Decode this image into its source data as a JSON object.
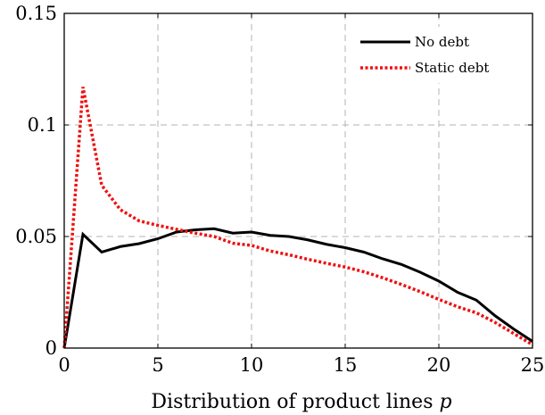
{
  "chart_data": {
    "type": "line",
    "title": "",
    "xlabel": "Distribution of product lines",
    "xlabel_var": "p",
    "ylabel": "",
    "xlim": [
      0,
      25
    ],
    "ylim": [
      0,
      0.15
    ],
    "x_ticks": [
      0,
      5,
      10,
      15,
      20,
      25
    ],
    "y_ticks": [
      0,
      0.05,
      0.1,
      0.15
    ],
    "x_tick_labels": [
      "0",
      "5",
      "10",
      "15",
      "20",
      "25"
    ],
    "y_tick_labels": [
      "0",
      "0.05",
      "0.1",
      "0.15"
    ],
    "grid": true,
    "legend_position": "top-right",
    "x": [
      0,
      1,
      2,
      3,
      4,
      5,
      6,
      7,
      8,
      9,
      10,
      11,
      12,
      13,
      14,
      15,
      16,
      17,
      18,
      19,
      20,
      21,
      22,
      23,
      24,
      25
    ],
    "series": [
      {
        "name": "No debt",
        "color": "#000000",
        "style": "solid",
        "values": [
          0,
          0.051,
          0.043,
          0.0455,
          0.0468,
          0.049,
          0.052,
          0.053,
          0.0535,
          0.0515,
          0.052,
          0.0505,
          0.05,
          0.0485,
          0.0465,
          0.045,
          0.043,
          0.04,
          0.0375,
          0.034,
          0.03,
          0.025,
          0.0215,
          0.0145,
          0.0085,
          0.003
        ]
      },
      {
        "name": "Static debt",
        "color": "#ee1111",
        "style": "dotted",
        "values": [
          0,
          0.117,
          0.073,
          0.062,
          0.057,
          0.055,
          0.0532,
          0.0515,
          0.05,
          0.047,
          0.046,
          0.0435,
          0.0418,
          0.0398,
          0.038,
          0.0363,
          0.0342,
          0.0315,
          0.0285,
          0.0253,
          0.0218,
          0.0185,
          0.0158,
          0.0115,
          0.0065,
          0.0015
        ]
      }
    ]
  }
}
